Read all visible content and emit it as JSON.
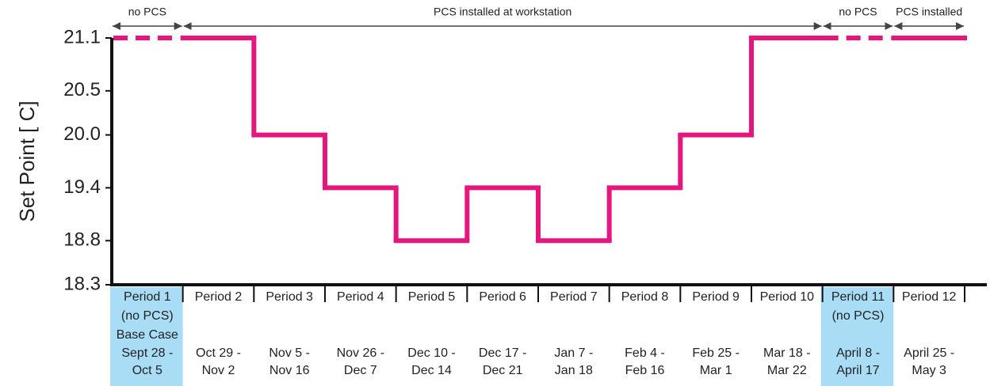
{
  "chart_data": {
    "type": "step",
    "y_label": "Set Point [ C]",
    "categories": [
      "Period 1",
      "Period 2",
      "Period 3",
      "Period 4",
      "Period 5",
      "Period 6",
      "Period 7",
      "Period 8",
      "Period 9",
      "Period 10",
      "Period 11",
      "Period 12"
    ],
    "notes": [
      [
        "(no PCS)",
        "Base Case"
      ],
      [],
      [],
      [],
      [],
      [],
      [],
      [],
      [],
      [],
      [
        "(no PCS)"
      ],
      []
    ],
    "dates": [
      [
        "Sept 28 -",
        "Oct 5"
      ],
      [
        "Oct 29 -",
        "Nov 2"
      ],
      [
        "Nov 5 -",
        "Nov 16"
      ],
      [
        "Nov 26 -",
        "Dec 7"
      ],
      [
        "Dec 10 -",
        "Dec 14"
      ],
      [
        "Dec 17 -",
        "Dec 21"
      ],
      [
        "Jan 7 -",
        "Jan 18"
      ],
      [
        "Feb 4 -",
        "Feb 16"
      ],
      [
        "Feb 25 -",
        "Mar 1"
      ],
      [
        "Mar 18 -",
        "Mar 22"
      ],
      [
        "April 8 -",
        "April 17"
      ],
      [
        "April 25 -",
        "May 3"
      ]
    ],
    "values": [
      21.1,
      21.1,
      20.0,
      19.4,
      18.8,
      19.4,
      18.8,
      19.4,
      20.0,
      21.1,
      21.1,
      21.1
    ],
    "no_pcs": [
      true,
      false,
      false,
      false,
      false,
      false,
      false,
      false,
      false,
      false,
      true,
      false
    ],
    "color": "#e5177f",
    "highlight_color": "#a9ddf6",
    "ylim": [
      18.3,
      21.1
    ],
    "yticks": [
      18.3,
      18.8,
      19.4,
      {
        "value": 20.0,
        "label": "20.0"
      },
      20.5,
      21.1
    ],
    "annotations": [
      {
        "text": "no PCS",
        "from": 0,
        "to": 0
      },
      {
        "text": "PCS installed at workstation",
        "from": 1,
        "to": 9
      },
      {
        "text": "no PCS",
        "from": 10,
        "to": 10
      },
      {
        "text": "PCS installed",
        "from": 11,
        "to": 11
      }
    ]
  }
}
